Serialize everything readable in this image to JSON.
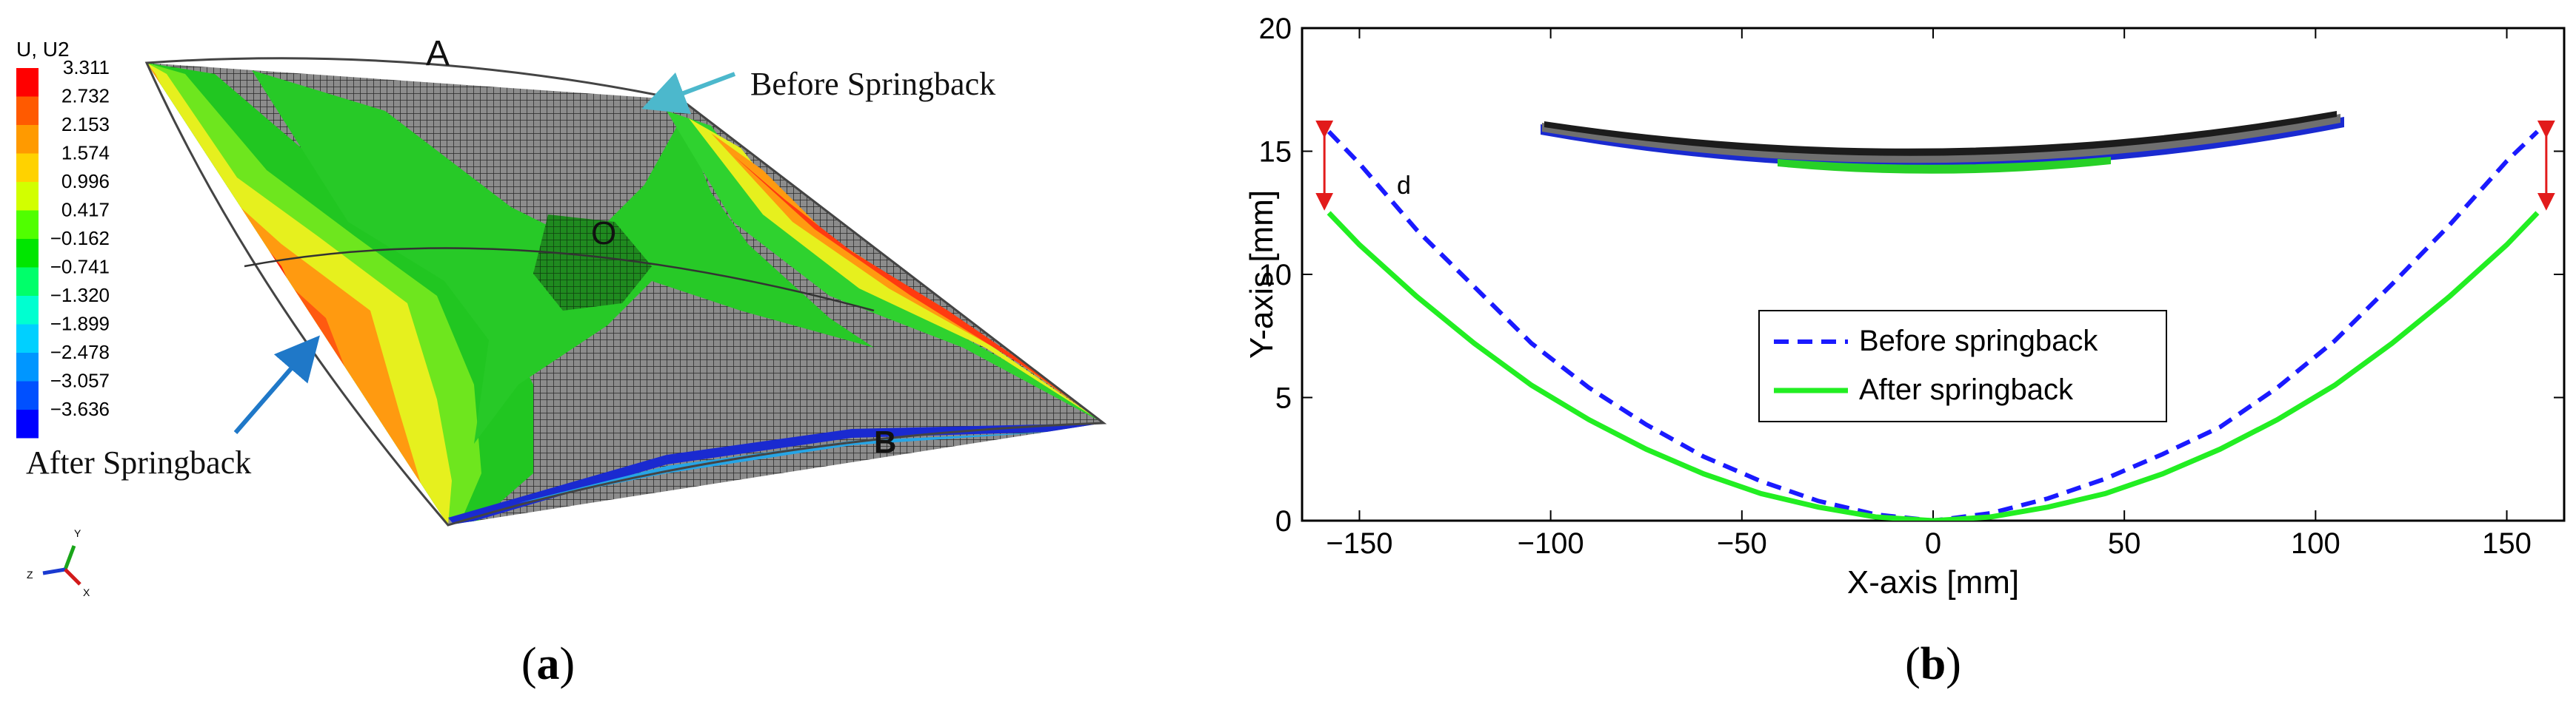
{
  "panel_a": {
    "legend_title": "U, U2",
    "legend_values": [
      "3.311",
      "2.732",
      "2.153",
      "1.574",
      "0.996",
      "0.417",
      "−0.162",
      "−0.741",
      "−1.320",
      "−1.899",
      "−2.478",
      "−3.057",
      "−3.636"
    ],
    "legend_colors": [
      "#ff0000",
      "#ff5a00",
      "#ff9a00",
      "#ffd200",
      "#d2ff00",
      "#50ff00",
      "#00e600",
      "#00ff6a",
      "#00ffd0",
      "#00d0ff",
      "#0096ff",
      "#0050ff",
      "#0000ff"
    ],
    "label_a": "A",
    "label_b": "B",
    "label_o": "O",
    "before_label": "Before Springback",
    "after_label": "After Springback",
    "triad": {
      "y": "Y",
      "z": "Z",
      "x": "X"
    },
    "caption_letter": "a"
  },
  "panel_b": {
    "caption_letter": "b",
    "d_label": "d"
  },
  "chart_data": {
    "type": "line",
    "xlabel": "X-axis [mm]",
    "ylabel": "Y-axis [mm]",
    "xlim": [
      -165,
      165
    ],
    "ylim": [
      0,
      20
    ],
    "xticks": [
      -150,
      -100,
      -50,
      0,
      50,
      100,
      150
    ],
    "yticks": [
      0,
      5,
      10,
      15,
      20
    ],
    "legend_position": "center",
    "series": [
      {
        "name": "Before springback",
        "color": "#1a1aff",
        "style": "dashed",
        "x": [
          -158,
          -150,
          -135,
          -120,
          -105,
          -90,
          -75,
          -60,
          -45,
          -30,
          -15,
          0,
          15,
          30,
          45,
          60,
          75,
          90,
          105,
          120,
          135,
          150,
          158
        ],
        "y": [
          15.8,
          14.5,
          11.8,
          9.5,
          7.2,
          5.4,
          3.9,
          2.6,
          1.6,
          0.8,
          0.25,
          0,
          0.3,
          0.9,
          1.7,
          2.7,
          3.8,
          5.4,
          7.3,
          9.6,
          12.0,
          14.6,
          15.8
        ]
      },
      {
        "name": "After springback",
        "color": "#22ee22",
        "style": "solid",
        "x": [
          -158,
          -150,
          -135,
          -120,
          -105,
          -90,
          -75,
          -60,
          -45,
          -30,
          -15,
          0,
          15,
          30,
          45,
          60,
          75,
          90,
          105,
          120,
          135,
          150,
          158
        ],
        "y": [
          12.5,
          11.2,
          9.1,
          7.2,
          5.5,
          4.1,
          2.9,
          1.9,
          1.1,
          0.55,
          0.15,
          0,
          0.15,
          0.55,
          1.1,
          1.9,
          2.9,
          4.1,
          5.5,
          7.2,
          9.1,
          11.2,
          12.5
        ]
      }
    ],
    "annotations": [
      "d"
    ]
  }
}
